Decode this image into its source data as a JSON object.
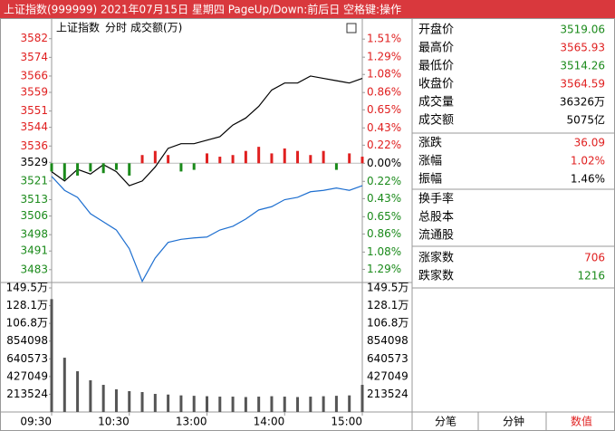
{
  "window": {
    "title": "上证指数(999999) 2021年07月15日 星期四 PageUp/Down:前后日 空格键:操作"
  },
  "chart_data": [
    {
      "type": "line",
      "title": "上证指数",
      "subtitle": "分时",
      "x": [
        0,
        10,
        20,
        30,
        40,
        50,
        60,
        70,
        80,
        90,
        100,
        110,
        120,
        130,
        140,
        150,
        160,
        170,
        180,
        190,
        200,
        210,
        220,
        230,
        240
      ],
      "xlim": [
        0,
        240
      ],
      "ylim": [
        3477.5,
        3585
      ],
      "yticks": [
        3582,
        3574,
        3566,
        3559,
        3551,
        3544,
        3536,
        3529,
        3521,
        3513,
        3506,
        3498,
        3491,
        3483
      ],
      "y2lim": [
        -1.45,
        1.6
      ],
      "y2ticks": [
        {
          "value": 1.51,
          "label": "1.51%"
        },
        {
          "value": 1.29,
          "label": "1.29%"
        },
        {
          "value": 1.08,
          "label": "1.08%"
        },
        {
          "value": 0.86,
          "label": "0.86%"
        },
        {
          "value": 0.65,
          "label": "0.65%"
        },
        {
          "value": 0.43,
          "label": "0.43%"
        },
        {
          "value": 0.22,
          "label": "0.22%"
        },
        {
          "value": 0,
          "label": "0.00%"
        },
        {
          "value": -0.22,
          "label": "0.22%"
        },
        {
          "value": -0.43,
          "label": "0.43%"
        },
        {
          "value": -0.65,
          "label": "0.65%"
        },
        {
          "value": -0.86,
          "label": "0.86%"
        },
        {
          "value": -1.08,
          "label": "1.08%"
        },
        {
          "value": -1.29,
          "label": "1.29%"
        }
      ],
      "up_color": "#e02020",
      "down_color": "#1a8a1a",
      "series": [
        {
          "color": "#000000",
          "values": [
            3525,
            3521,
            3526,
            3524,
            3528,
            3525,
            3519,
            3521,
            3527,
            3535,
            3537,
            3537,
            3538.5,
            3540,
            3545,
            3548,
            3553,
            3560,
            3563,
            3563,
            3566,
            3565,
            3564,
            3563,
            3565
          ]
        },
        {
          "color": "#1e6fd0",
          "values": [
            3523,
            3517,
            3514,
            3507,
            3503.5,
            3500,
            3492,
            3478,
            3488,
            3494.7,
            3496,
            3496.6,
            3497,
            3500,
            3501.6,
            3504.7,
            3508.6,
            3510,
            3513,
            3514,
            3516.4,
            3517,
            3518,
            3517,
            3519
          ]
        },
        {
          "type": "bar",
          "axis": "y2",
          "values": [
            -0.1,
            -0.2,
            -0.15,
            -0.1,
            -0.12,
            -0.08,
            -0.15,
            0.1,
            0.15,
            0.1,
            -0.1,
            -0.08,
            0.12,
            0.08,
            0.1,
            0.15,
            0.2,
            0.12,
            0.18,
            0.15,
            0.1,
            0.15,
            -0.08,
            0.12,
            0.08
          ]
        }
      ]
    },
    {
      "type": "bar",
      "title": "成交额(万)",
      "x": [
        0,
        10,
        20,
        30,
        40,
        50,
        60,
        70,
        80,
        90,
        100,
        110,
        120,
        130,
        140,
        150,
        160,
        170,
        180,
        190,
        200,
        210,
        220,
        230,
        240
      ],
      "xlim": [
        0,
        240
      ],
      "xticks": [
        {
          "value": 0,
          "label": "09:30"
        },
        {
          "value": 60,
          "label": "10:30"
        },
        {
          "value": 120,
          "label": "13:00"
        },
        {
          "value": 180,
          "label": "14:00"
        },
        {
          "value": 240,
          "label": "15:00"
        }
      ],
      "values": [
        1360000,
        654000,
        491000,
        382000,
        327000,
        273000,
        251000,
        240000,
        218000,
        210000,
        200000,
        195000,
        190000,
        185000,
        185000,
        180000,
        185000,
        190000,
        185000,
        180000,
        185000,
        190000,
        195000,
        200000,
        327000
      ],
      "color": "#555555",
      "ylim": [
        0,
        1494671
      ],
      "yticks": [
        {
          "value": 1494671,
          "label": "149.5万"
        },
        {
          "value": 1281147,
          "label": "128.1万"
        },
        {
          "value": 1067622,
          "label": "106.8万"
        },
        854098,
        640573,
        427049,
        213524
      ]
    }
  ],
  "quote_panel": {
    "rows": [
      {
        "label": "开盘价",
        "value": "3519.06",
        "color": "#1a8a1a"
      },
      {
        "label": "最高价",
        "value": "3565.93",
        "color": "#e02020"
      },
      {
        "label": "最低价",
        "value": "3514.26",
        "color": "#1a8a1a"
      },
      {
        "label": "收盘价",
        "value": "3564.59",
        "color": "#e02020"
      },
      {
        "label": "成交量",
        "value": "36326万",
        "color": "#000000"
      },
      {
        "label": "成交额",
        "value": "5075亿",
        "color": "#000000"
      },
      {
        "label": "涨跌",
        "value": "36.09",
        "color": "#e02020"
      },
      {
        "label": "涨幅",
        "value": "1.02%",
        "color": "#e02020"
      },
      {
        "label": "振幅",
        "value": "1.46%",
        "color": "#000000"
      },
      {
        "label": "换手率"
      },
      {
        "label": "总股本"
      },
      {
        "label": "流通股"
      },
      {
        "label": "涨家数",
        "value": "706",
        "color": "#e02020"
      },
      {
        "label": "跌家数",
        "value": "1216",
        "color": "#1a8a1a"
      }
    ]
  },
  "tabs": [
    "分笔",
    "分钟",
    "数值"
  ]
}
